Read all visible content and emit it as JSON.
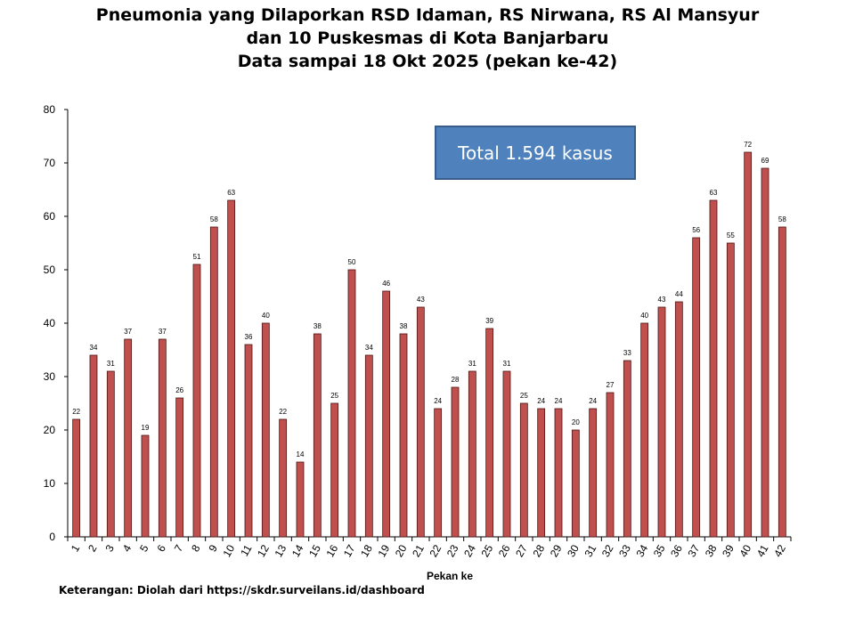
{
  "chart_data": {
    "type": "bar",
    "title_lines": [
      "Pneumonia yang Dilaporkan RSD Idaman, RS Nirwana, RS Al Mansyur",
      "dan 10 Puskesmas di Kota Banjarbaru",
      "Data sampai 18 Okt 2025 (pekan ke-42)"
    ],
    "xlabel": "Pekan ke",
    "ylabel": "",
    "categories": [
      "1",
      "2",
      "3",
      "4",
      "5",
      "6",
      "7",
      "8",
      "9",
      "10",
      "11",
      "12",
      "13",
      "14",
      "15",
      "16",
      "17",
      "18",
      "19",
      "20",
      "21",
      "22",
      "23",
      "24",
      "25",
      "26",
      "27",
      "28",
      "29",
      "30",
      "31",
      "32",
      "33",
      "34",
      "35",
      "36",
      "37",
      "38",
      "39",
      "40",
      "41",
      "42"
    ],
    "values": [
      22,
      34,
      31,
      37,
      19,
      37,
      26,
      51,
      58,
      63,
      36,
      40,
      22,
      14,
      38,
      25,
      50,
      34,
      46,
      38,
      43,
      24,
      28,
      31,
      39,
      31,
      25,
      24,
      24,
      20,
      24,
      27,
      33,
      40,
      43,
      44,
      56,
      63,
      55,
      72,
      69,
      58
    ],
    "yticks": [
      "0",
      "10",
      "20",
      "30",
      "40",
      "50",
      "60",
      "70",
      "80"
    ],
    "ylim": [
      0,
      80
    ],
    "grid": false,
    "legend": "none",
    "annotation": "Total 1.594 kasus",
    "bar_color": "#c0504d",
    "bar_edge_color": "#4a1414"
  },
  "footnote": "Keterangan: Diolah dari https://skdr.surveilans.id/dashboard"
}
